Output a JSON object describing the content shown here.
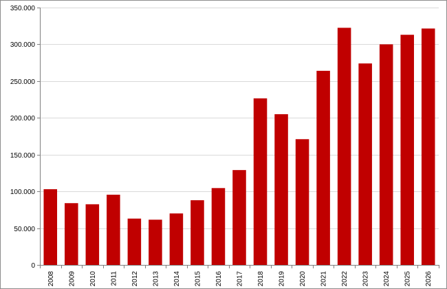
{
  "chart_data": {
    "type": "bar",
    "title": "",
    "xlabel": "",
    "ylabel": "",
    "categories": [
      "2008",
      "2009",
      "2010",
      "2011",
      "2012",
      "2013",
      "2014",
      "2015",
      "2016",
      "2017",
      "2018",
      "2019",
      "2020",
      "2021",
      "2022",
      "2023",
      "2024",
      "2025",
      "2026"
    ],
    "values": [
      103000,
      84000,
      82500,
      95500,
      63000,
      61500,
      70000,
      88000,
      104500,
      129000,
      226500,
      205000,
      171000,
      264000,
      322500,
      274000,
      300000,
      313000,
      321500
    ],
    "ylim": [
      0,
      350000
    ],
    "y_ticks": [
      0,
      50000,
      100000,
      150000,
      200000,
      250000,
      300000,
      350000
    ],
    "y_tick_labels": [
      "0",
      "50.000",
      "100.000",
      "150.000",
      "200.000",
      "250.000",
      "300.000",
      "350.000"
    ],
    "grid": true,
    "legend": "none",
    "bar_color": "#C00000"
  }
}
